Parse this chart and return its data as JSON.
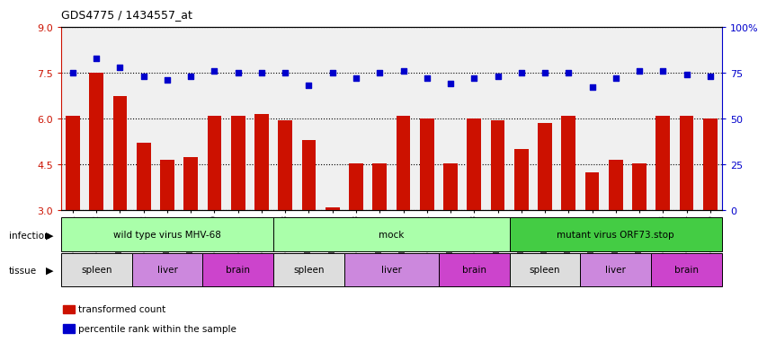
{
  "title": "GDS4775 / 1434557_at",
  "samples": [
    "GSM1243471",
    "GSM1243472",
    "GSM1243473",
    "GSM1243462",
    "GSM1243463",
    "GSM1243464",
    "GSM1243480",
    "GSM1243481",
    "GSM1243482",
    "GSM1243468",
    "GSM1243469",
    "GSM1243470",
    "GSM1243458",
    "GSM1243459",
    "GSM1243460",
    "GSM1243461",
    "GSM1243477",
    "GSM1243478",
    "GSM1243479",
    "GSM1243474",
    "GSM1243475",
    "GSM1243476",
    "GSM1243465",
    "GSM1243466",
    "GSM1243467",
    "GSM1243483",
    "GSM1243484",
    "GSM1243485"
  ],
  "bar_values": [
    6.1,
    7.5,
    6.75,
    5.2,
    4.65,
    4.75,
    6.1,
    6.1,
    6.15,
    5.95,
    5.3,
    3.1,
    4.55,
    4.55,
    6.1,
    6.0,
    4.55,
    6.0,
    5.95,
    5.0,
    5.85,
    6.1,
    4.25,
    4.65,
    4.55,
    6.1,
    6.1,
    6.0
  ],
  "dot_values": [
    75,
    83,
    78,
    73,
    71,
    73,
    76,
    75,
    75,
    75,
    68,
    75,
    72,
    75,
    76,
    72,
    69,
    72,
    73,
    75,
    75,
    75,
    67,
    72,
    76,
    76,
    74,
    73
  ],
  "ylim_left": [
    3,
    9
  ],
  "ylim_right": [
    0,
    100
  ],
  "yticks_left": [
    3,
    4.5,
    6,
    7.5,
    9
  ],
  "yticks_right": [
    0,
    25,
    50,
    75,
    100
  ],
  "bar_color": "#cc1100",
  "dot_color": "#0000cc",
  "bg_color": "#f0f0f0",
  "infection_groups": [
    {
      "label": "wild type virus MHV-68",
      "start": 0,
      "end": 9,
      "color": "#aaffaa"
    },
    {
      "label": "mock",
      "start": 9,
      "end": 19,
      "color": "#aaffaa"
    },
    {
      "label": "mutant virus ORF73.stop",
      "start": 19,
      "end": 28,
      "color": "#44cc44"
    }
  ],
  "tissue_groups": [
    {
      "label": "spleen",
      "start": 0,
      "end": 3,
      "color": "#dddddd"
    },
    {
      "label": "liver",
      "start": 3,
      "end": 6,
      "color": "#cc88dd"
    },
    {
      "label": "brain",
      "start": 6,
      "end": 9,
      "color": "#dd44dd"
    },
    {
      "label": "spleen",
      "start": 9,
      "end": 12,
      "color": "#dddddd"
    },
    {
      "label": "liver",
      "start": 12,
      "end": 16,
      "color": "#cc88dd"
    },
    {
      "label": "brain",
      "start": 16,
      "end": 19,
      "color": "#dd44dd"
    },
    {
      "label": "spleen",
      "start": 19,
      "end": 22,
      "color": "#dddddd"
    },
    {
      "label": "liver",
      "start": 22,
      "end": 25,
      "color": "#cc88dd"
    },
    {
      "label": "brain",
      "start": 25,
      "end": 28,
      "color": "#dd44dd"
    }
  ],
  "legend_items": [
    {
      "label": "transformed count",
      "color": "#cc1100"
    },
    {
      "label": "percentile rank within the sample",
      "color": "#0000cc"
    }
  ]
}
